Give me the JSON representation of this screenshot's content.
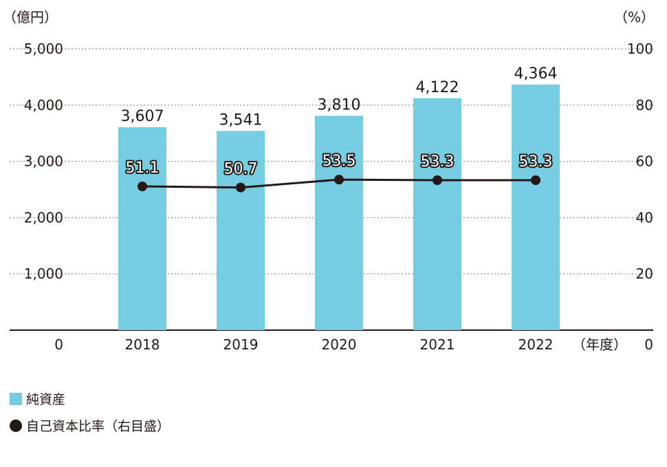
{
  "colors": {
    "bar": "#76CCE0",
    "line": "#231815",
    "grid": "#999999",
    "axis": "#231815",
    "text": "#231815"
  },
  "chart_data": {
    "type": "bar",
    "categories": [
      "2018",
      "2019",
      "2020",
      "2021",
      "2022"
    ],
    "left_unit": "（億円）",
    "right_unit": "（%）",
    "x_unit": "（年度）",
    "y_ticks": [
      "0",
      "1,000",
      "2,000",
      "3,000",
      "4,000",
      "5,000"
    ],
    "y2_ticks": [
      "0",
      "20",
      "40",
      "60",
      "80",
      "100"
    ],
    "ylim": [
      0,
      5000
    ],
    "y2lim": [
      0,
      100
    ],
    "grid": true,
    "series": [
      {
        "name": "純資産",
        "kind": "bar",
        "axis": "left",
        "values": [
          3607,
          3541,
          3810,
          4122,
          4364
        ],
        "labels": [
          "3,607",
          "3,541",
          "3,810",
          "4,122",
          "4,364"
        ]
      },
      {
        "name": "自己資本比率（右目盛）",
        "kind": "line",
        "axis": "right",
        "values": [
          51.1,
          50.7,
          53.5,
          53.3,
          53.3
        ],
        "labels": [
          "51.1",
          "50.7",
          "53.5",
          "53.3",
          "53.3"
        ]
      }
    ]
  }
}
